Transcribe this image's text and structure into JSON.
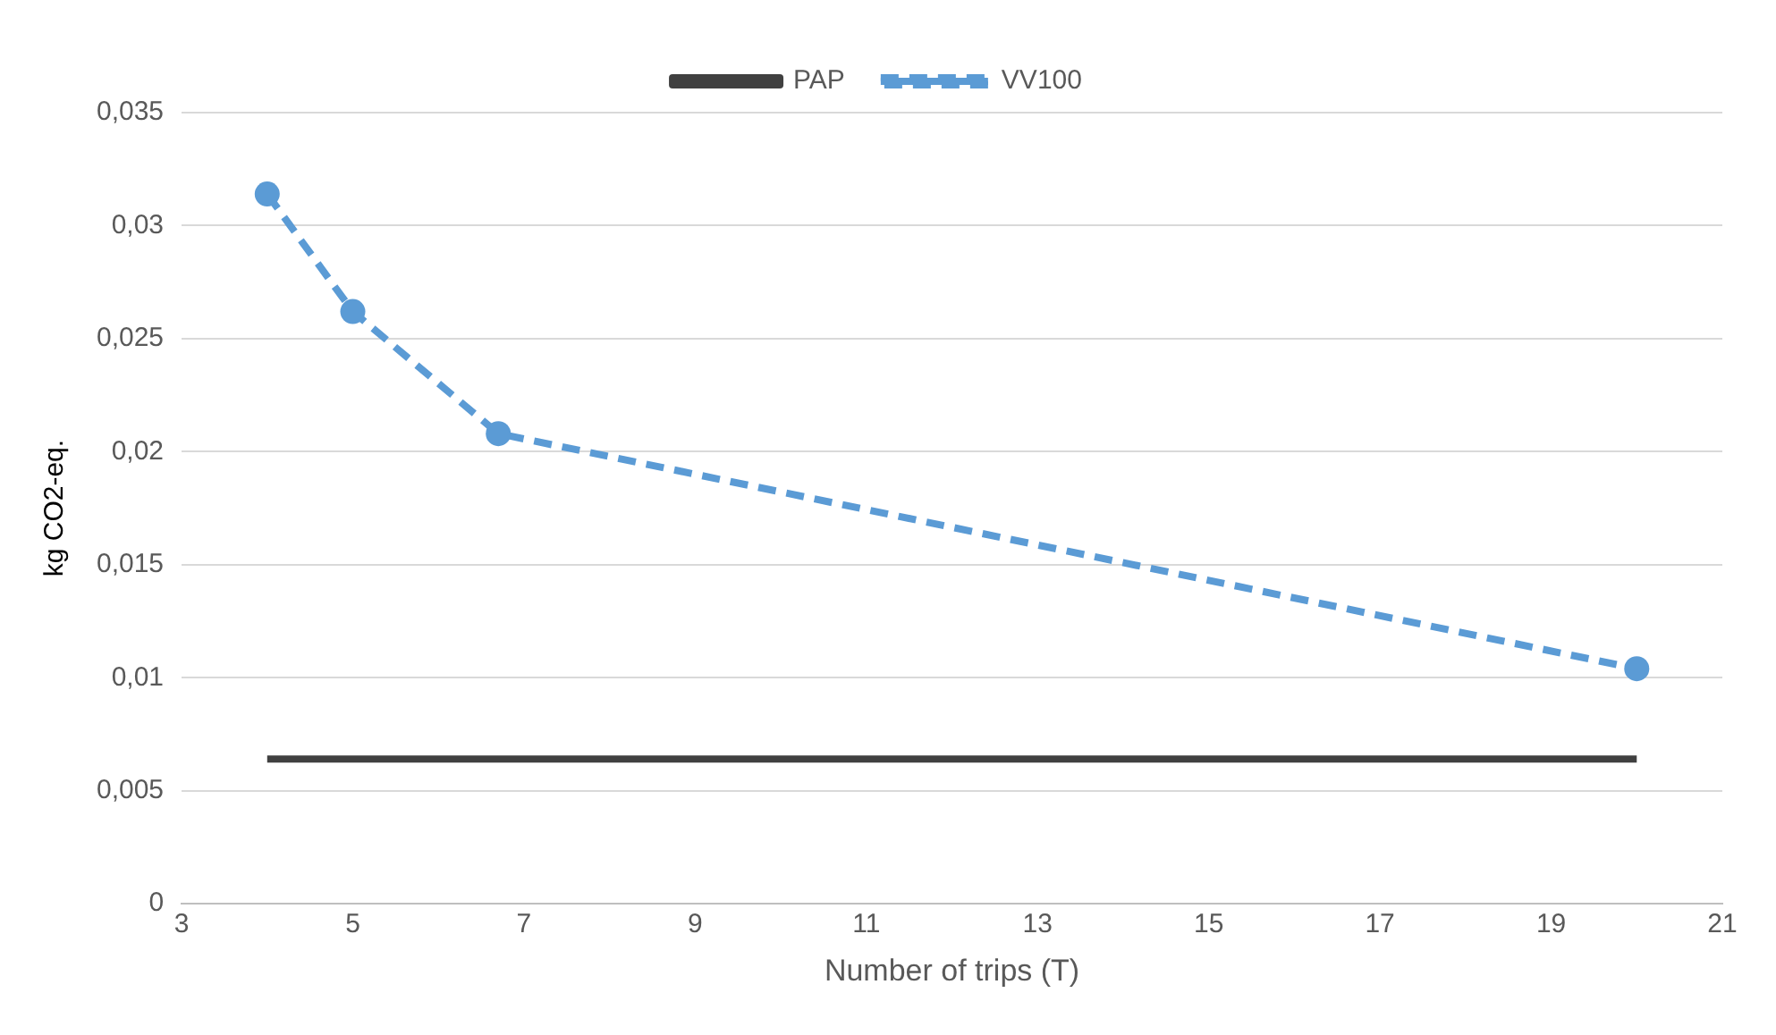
{
  "chart_data": {
    "type": "line",
    "xlabel": "Number of trips (T)",
    "ylabel": "kg CO2-eq.",
    "series": [
      {
        "name": "PAP",
        "color": "#404040",
        "x": [
          4,
          20
        ],
        "values": [
          0.0064,
          0.0064
        ],
        "line_style": "solid",
        "marker": "none"
      },
      {
        "name": "VV100",
        "color": "#5b9bd5",
        "x": [
          4,
          5,
          6.7,
          20
        ],
        "values": [
          0.0314,
          0.0262,
          0.0208,
          0.0104
        ],
        "line_style": "dashed",
        "marker": "circle"
      }
    ],
    "xlim": [
      3,
      21
    ],
    "xticks": [
      3,
      5,
      7,
      9,
      11,
      13,
      15,
      17,
      19,
      21
    ],
    "ylim": [
      0,
      0.035
    ],
    "yticks": [
      {
        "value": 0,
        "label": "0"
      },
      {
        "value": 0.005,
        "label": "0,005"
      },
      {
        "value": 0.01,
        "label": "0,01"
      },
      {
        "value": 0.015,
        "label": "0,015"
      },
      {
        "value": 0.02,
        "label": "0,02"
      },
      {
        "value": 0.025,
        "label": "0,025"
      },
      {
        "value": 0.03,
        "label": "0,03"
      },
      {
        "value": 0.035,
        "label": "0,035"
      }
    ],
    "grid": "y",
    "legend": "top"
  }
}
